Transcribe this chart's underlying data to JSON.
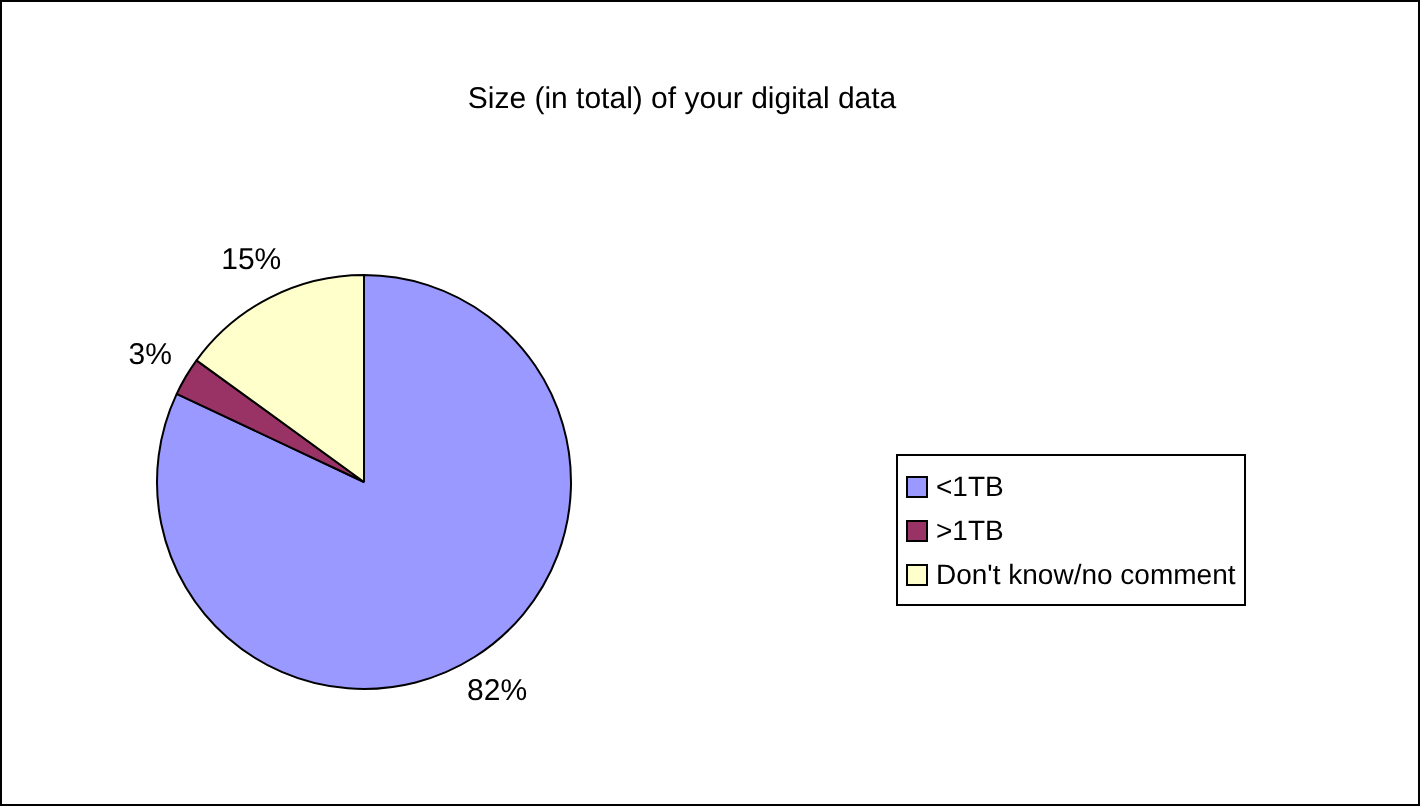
{
  "chart_data": {
    "type": "pie",
    "title": "Size (in total) of your digital data",
    "categories": [
      "<1TB",
      ">1TB",
      "Don't know/no comment"
    ],
    "values": [
      82,
      3,
      15
    ],
    "value_labels": [
      "82%",
      "3%",
      "15%"
    ],
    "colors": [
      "#9999ff",
      "#993366",
      "#ffffcc"
    ],
    "legend": "right"
  }
}
